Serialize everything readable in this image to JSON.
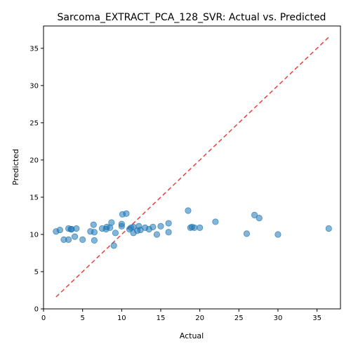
{
  "chart_data": {
    "type": "scatter",
    "title": "Sarcoma_EXTRACT_PCA_128_SVR: Actual vs. Predicted",
    "xlabel": "Actual",
    "ylabel": "Predicted",
    "xlim": [
      0,
      38
    ],
    "ylim": [
      0,
      38
    ],
    "x_ticks": [
      0,
      5,
      10,
      15,
      20,
      25,
      30,
      35
    ],
    "y_ticks": [
      0,
      5,
      10,
      15,
      20,
      25,
      30,
      35
    ],
    "grid": false,
    "point_color": "#1f77b4",
    "reference_line": {
      "x": [
        1.6,
        36.5
      ],
      "y": [
        1.6,
        36.5
      ],
      "color": "#e8413c",
      "style": "dashed"
    },
    "points": [
      {
        "x": 1.6,
        "y": 10.4
      },
      {
        "x": 2.1,
        "y": 10.6
      },
      {
        "x": 2.6,
        "y": 9.3
      },
      {
        "x": 3.2,
        "y": 9.3
      },
      {
        "x": 3.2,
        "y": 10.8
      },
      {
        "x": 3.5,
        "y": 10.7
      },
      {
        "x": 3.6,
        "y": 10.7
      },
      {
        "x": 4.0,
        "y": 9.7
      },
      {
        "x": 4.2,
        "y": 10.8
      },
      {
        "x": 5.0,
        "y": 9.3
      },
      {
        "x": 6.0,
        "y": 10.4
      },
      {
        "x": 6.4,
        "y": 11.3
      },
      {
        "x": 6.5,
        "y": 10.3
      },
      {
        "x": 6.5,
        "y": 9.2
      },
      {
        "x": 7.5,
        "y": 10.8
      },
      {
        "x": 8.0,
        "y": 10.7
      },
      {
        "x": 8.1,
        "y": 11.0
      },
      {
        "x": 8.5,
        "y": 10.9
      },
      {
        "x": 8.7,
        "y": 11.6
      },
      {
        "x": 9.0,
        "y": 8.5
      },
      {
        "x": 9.2,
        "y": 10.2
      },
      {
        "x": 10.0,
        "y": 11.1
      },
      {
        "x": 10.0,
        "y": 11.4
      },
      {
        "x": 10.1,
        "y": 12.7
      },
      {
        "x": 10.6,
        "y": 12.8
      },
      {
        "x": 11.0,
        "y": 10.7
      },
      {
        "x": 11.2,
        "y": 10.9
      },
      {
        "x": 11.5,
        "y": 10.2
      },
      {
        "x": 11.5,
        "y": 11.0
      },
      {
        "x": 12.0,
        "y": 10.5
      },
      {
        "x": 12.2,
        "y": 11.1
      },
      {
        "x": 12.4,
        "y": 10.6
      },
      {
        "x": 13.0,
        "y": 10.9
      },
      {
        "x": 13.5,
        "y": 10.7
      },
      {
        "x": 14.0,
        "y": 11.0
      },
      {
        "x": 14.5,
        "y": 10.0
      },
      {
        "x": 15.0,
        "y": 11.1
      },
      {
        "x": 16.0,
        "y": 11.5
      },
      {
        "x": 16.0,
        "y": 10.3
      },
      {
        "x": 18.5,
        "y": 13.2
      },
      {
        "x": 18.8,
        "y": 10.9
      },
      {
        "x": 19.0,
        "y": 11.0
      },
      {
        "x": 19.3,
        "y": 10.9
      },
      {
        "x": 20.0,
        "y": 10.9
      },
      {
        "x": 22.0,
        "y": 11.7
      },
      {
        "x": 26.0,
        "y": 10.1
      },
      {
        "x": 27.0,
        "y": 12.6
      },
      {
        "x": 27.6,
        "y": 12.2
      },
      {
        "x": 30.0,
        "y": 10.0
      },
      {
        "x": 36.5,
        "y": 10.8
      }
    ]
  }
}
